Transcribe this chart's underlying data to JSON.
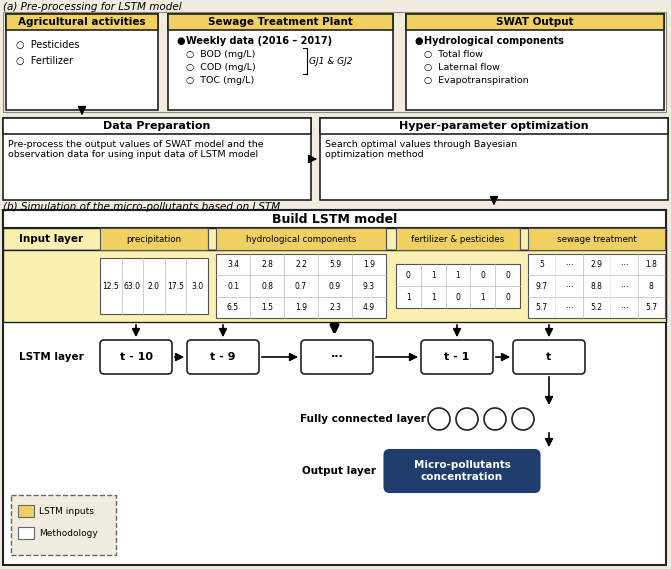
{
  "bg_color": "#f0ece0",
  "yellow_header": "#f0d060",
  "yellow_light": "#faf0b0",
  "white": "#ffffff",
  "dark_blue": "#1e3d6e",
  "black": "#000000",
  "border_dark": "#222222",
  "border_mid": "#555555",
  "title_a": "(a) Pre-processing for LSTM model",
  "title_b": "(b) Simulation of the micro-pollutants based on LSTM",
  "box1_title": "Agricultural activities",
  "box1_items": [
    "Pesticides",
    "Fertilizer"
  ],
  "box2_title": "Sewage Treatment Plant",
  "box2_bold": "Weekly data (2016 – 2017)",
  "box2_items": [
    "BOD (mg/L)",
    "COD (mg/L)",
    "TOC (mg/L)"
  ],
  "box2_label": "GJ1 & GJ2",
  "box3_title": "SWAT Output",
  "box3_bold": "Hydrological components",
  "box3_items": [
    "Total flow",
    "Laternal flow",
    "Evapotranspiration"
  ],
  "dp_title": "Data Preparation",
  "dp_text": "Pre-process the output values of SWAT model and the\nobservation data for using input data of LSTM model",
  "hp_title": "Hyper-parameter optimization",
  "hp_text": "Search optimal values through Bayesian\noptimization method",
  "lstm_title": "Build LSTM model",
  "input_layer_label": "Input layer",
  "categories": [
    "precipitation",
    "hydrological components",
    "fertilizer & pesticides",
    "sewage treatment"
  ],
  "precip_data": [
    "12.5",
    "63.0",
    "2.0",
    "17.5",
    "3.0"
  ],
  "hydro_data": [
    [
      "3.4",
      "2.8",
      "2.2",
      "5.9",
      "1.9"
    ],
    [
      "0.1",
      "0.8",
      "0.7",
      "0.9",
      "9.3"
    ],
    [
      "6.5",
      "1.5",
      "1.9",
      "2.3",
      "4.9"
    ]
  ],
  "fert_data": [
    [
      "0",
      "1",
      "1",
      "0",
      "0"
    ],
    [
      "1",
      "1",
      "0",
      "1",
      "0"
    ]
  ],
  "sewage_data": [
    [
      "5",
      "⋯",
      "2.9",
      "⋯",
      "1.8"
    ],
    [
      "9.7",
      "⋯",
      "8.8",
      "⋯",
      "8"
    ],
    [
      "5.7",
      "⋯",
      "5.2",
      "⋯",
      "5.7"
    ]
  ],
  "lstm_nodes": [
    "t - 10",
    "t - 9",
    "···",
    "t - 1",
    "t"
  ],
  "lstm_layer_label": "LSTM layer",
  "fc_label": "Fully connected layer",
  "output_label": "Output layer",
  "output_text": "Micro-pollutants\nconcentration",
  "legend_item_yellow": "LSTM inputs",
  "legend_item_white": "Methodology"
}
